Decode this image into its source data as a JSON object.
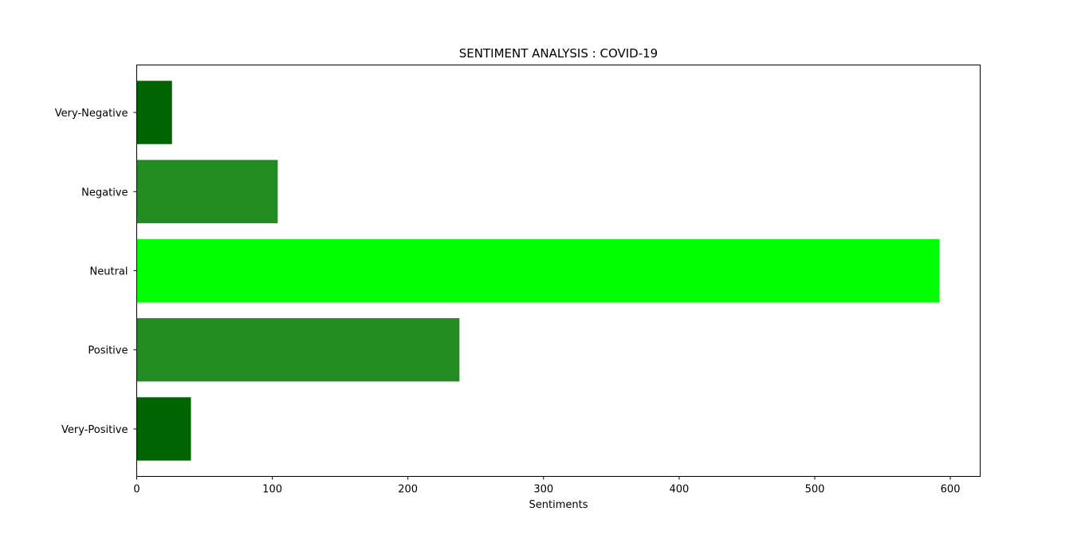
{
  "chart_data": {
    "type": "bar",
    "orientation": "horizontal",
    "title": "SENTIMENT ANALYSIS : COVID-19",
    "xlabel": "Sentiments",
    "ylabel": "",
    "categories": [
      "Very-Positive",
      "Positive",
      "Neutral",
      "Negative",
      "Very-Negative"
    ],
    "values": [
      40,
      238,
      592,
      104,
      26
    ],
    "colors": [
      "#006400",
      "#228B22",
      "#00FF00",
      "#228B22",
      "#006400"
    ],
    "xlim": [
      0,
      622
    ],
    "xticks": [
      0,
      100,
      200,
      300,
      400,
      500,
      600
    ],
    "grid": false,
    "legend": "none"
  }
}
